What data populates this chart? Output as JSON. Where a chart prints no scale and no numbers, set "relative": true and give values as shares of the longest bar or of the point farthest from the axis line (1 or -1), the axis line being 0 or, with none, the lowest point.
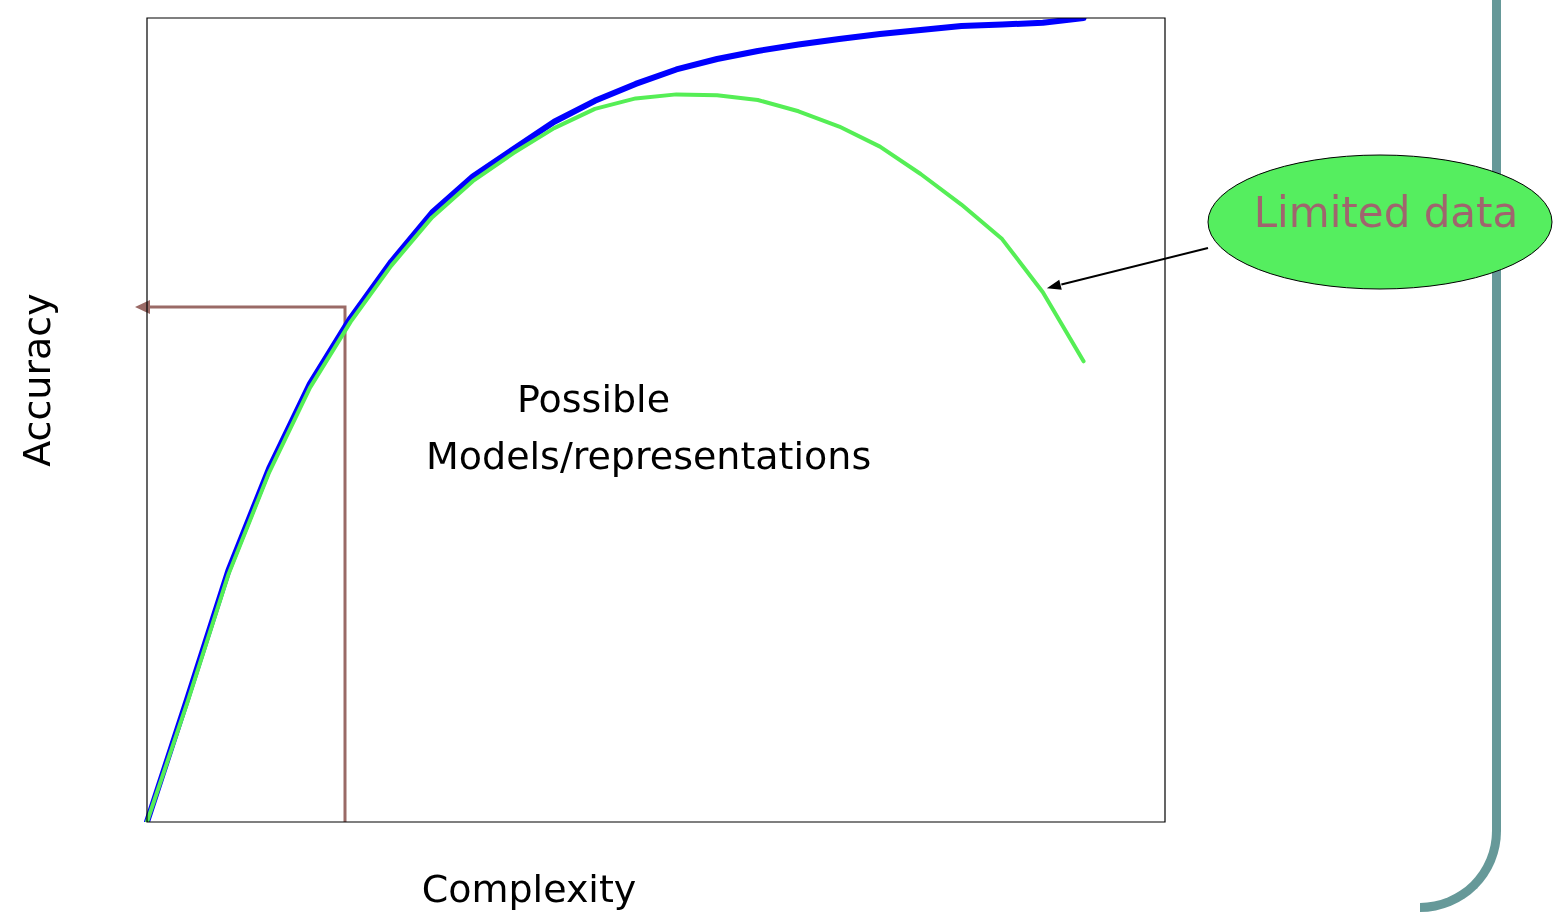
{
  "chart_data": {
    "type": "line",
    "relative": true,
    "xlabel": "Complexity",
    "ylabel": "Accuracy",
    "categories": [
      null,
      null,
      null,
      null,
      null,
      null,
      null,
      null,
      null,
      null,
      null,
      null,
      null,
      null,
      null,
      null,
      null,
      null,
      null,
      null,
      null,
      null,
      null,
      null,
      null,
      null
    ],
    "series": [
      {
        "color": "#0000ff",
        "values": [
          0,
          0.155,
          0.313,
          0.44,
          0.545,
          0.627,
          0.697,
          0.758,
          0.803,
          0.837,
          0.871,
          0.897,
          0.918,
          0.936,
          0.949,
          0.959,
          0.967,
          0.974,
          0.98,
          0.985,
          0.99,
          0.992,
          0.994,
          1,
          null,
          null
        ]
      },
      {
        "color": "#55ee55",
        "values": [
          0,
          0.15,
          0.308,
          0.435,
          0.54,
          0.622,
          0.692,
          0.752,
          0.797,
          0.832,
          0.863,
          0.887,
          0.9,
          0.905,
          0.904,
          0.898,
          0.884,
          0.865,
          0.84,
          0.806,
          0.768,
          0.725,
          0.659,
          0.573,
          null,
          null
        ]
      }
    ],
    "annotations": [
      "Possible Models/representations",
      "Limited data"
    ]
  }
}
